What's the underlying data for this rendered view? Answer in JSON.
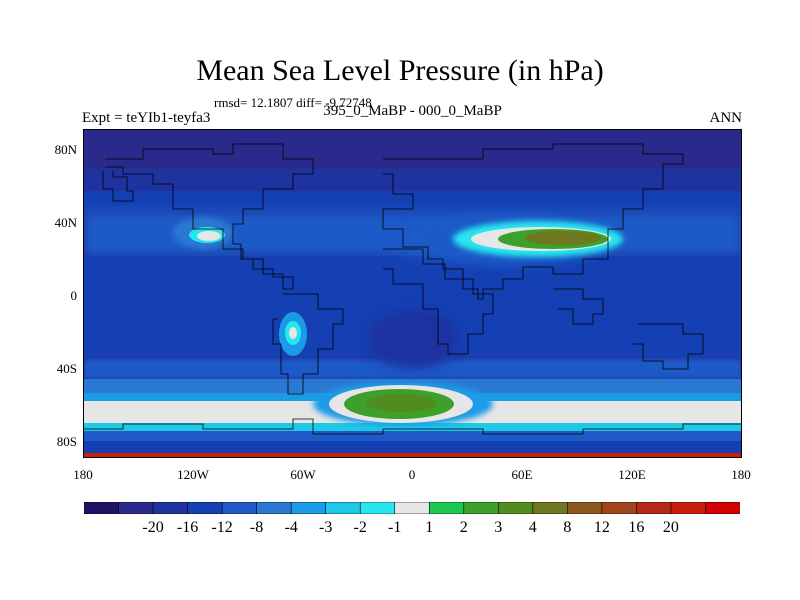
{
  "title": "Mean Sea Level Pressure (in hPa)",
  "stats": "rmsd= 12.1807 diff= -9.72748",
  "subtitle": "395_0_MaBP - 000_0_MaBP",
  "experiment": "Expt = teYIb1-teyfa3",
  "season": "ANN",
  "lat_labels": [
    "80N",
    "40N",
    "0",
    "40S",
    "80S"
  ],
  "lon_labels": [
    "180",
    "120W",
    "60W",
    "0",
    "60E",
    "120E",
    "180"
  ],
  "colorbar": {
    "colors": [
      "#1e1466",
      "#2a2a8c",
      "#1e32a0",
      "#1440b4",
      "#1e5ac8",
      "#2a78d2",
      "#1a9be6",
      "#1ec8e6",
      "#28e6f0",
      "#e6e6e6",
      "#1ec850",
      "#3ca02a",
      "#508c1e",
      "#6e781e",
      "#8c5a1e",
      "#a0461e",
      "#b42814",
      "#c81e0a",
      "#d20000"
    ],
    "levels": [
      "-20",
      "-16",
      "-12",
      "-8",
      "-4",
      "-3",
      "-2",
      "-1",
      "1",
      "2",
      "3",
      "4",
      "8",
      "12",
      "16",
      "20"
    ]
  }
}
